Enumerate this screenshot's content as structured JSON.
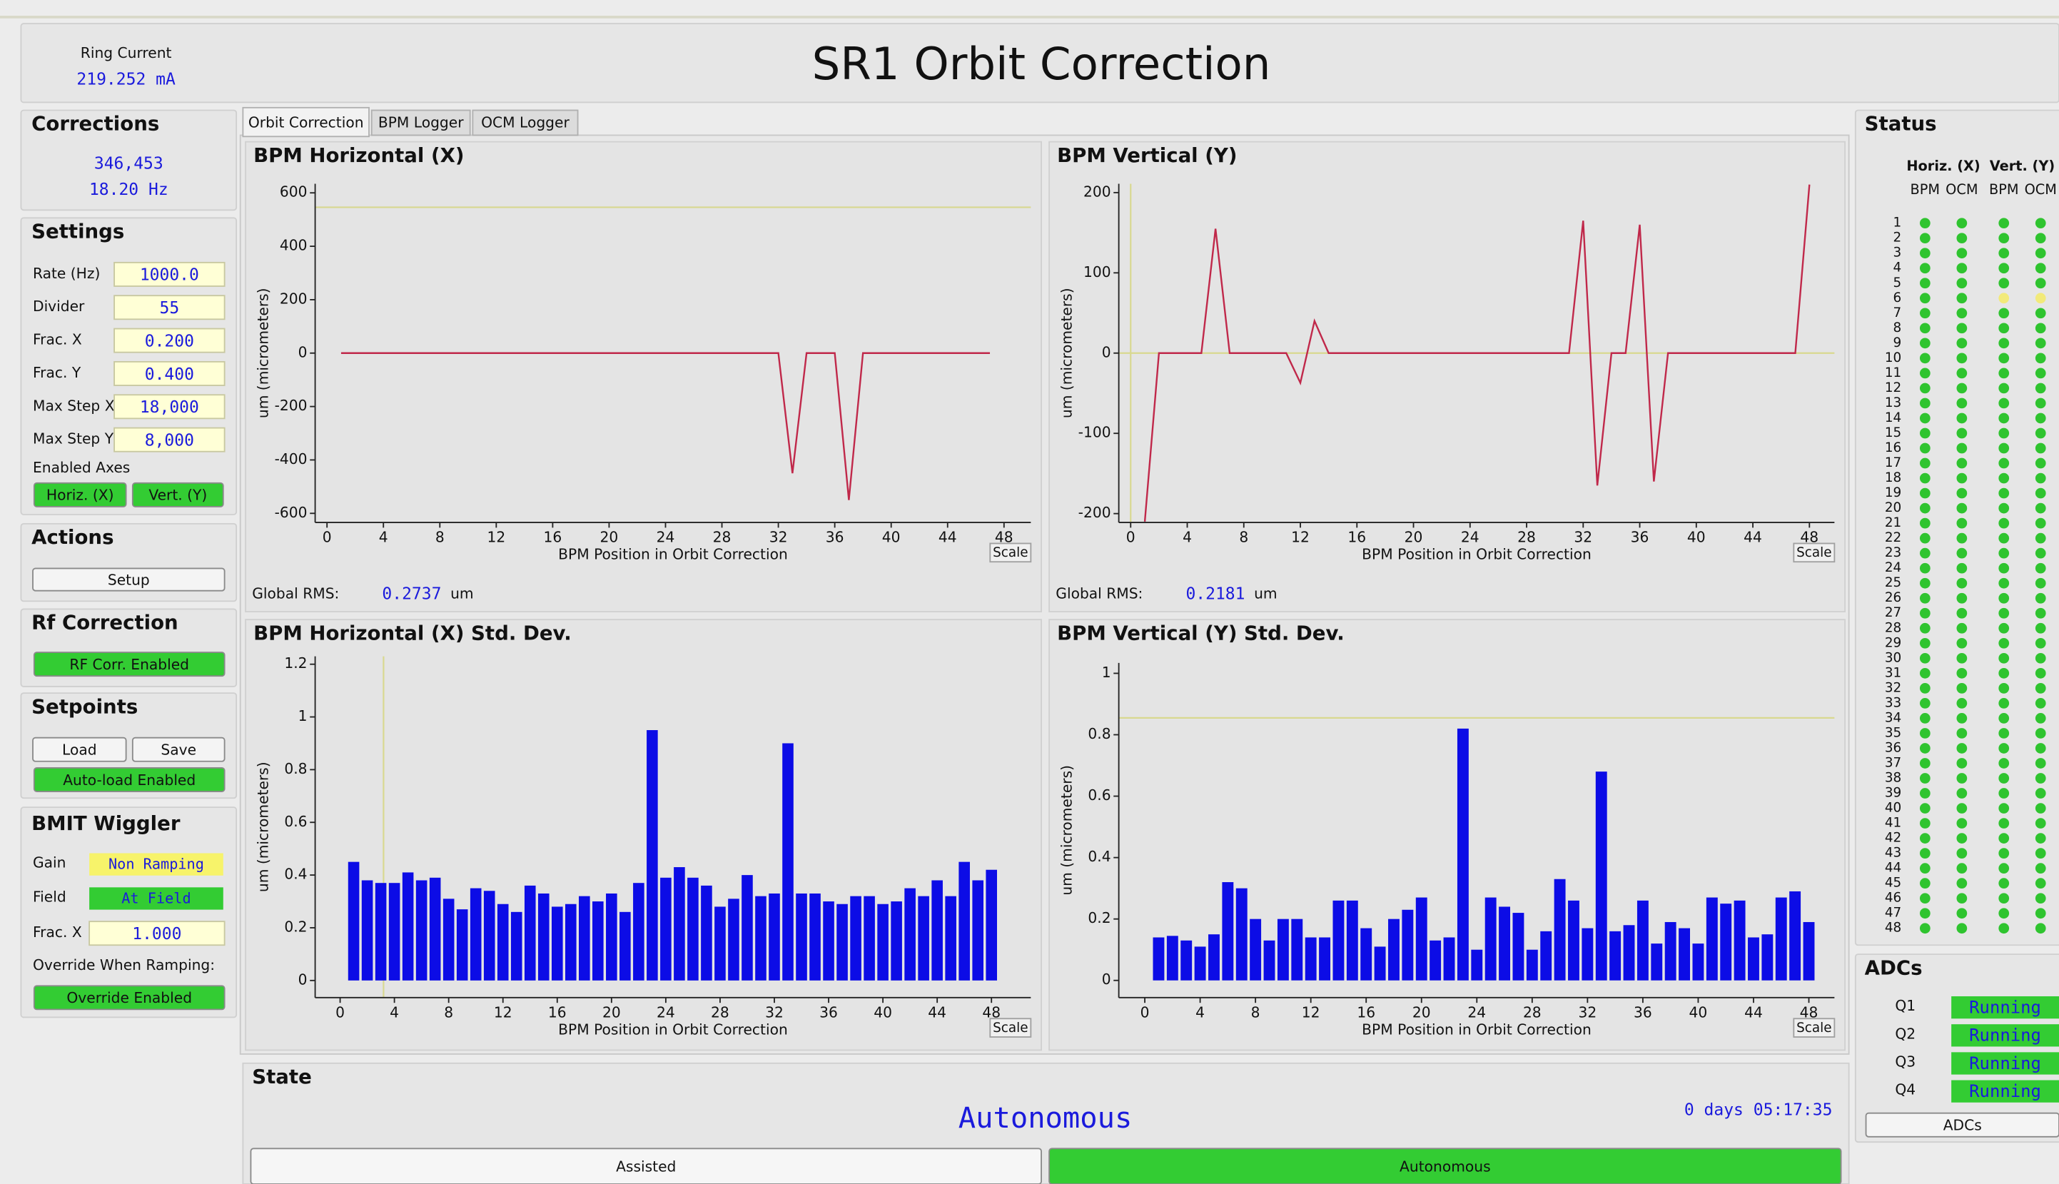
{
  "header": {
    "ring_current_label": "Ring Current",
    "ring_current": "219.252 mA",
    "title": "SR1 Orbit Correction"
  },
  "corrections": {
    "title": "Corrections",
    "count": "346,453",
    "rate": "18.20 Hz"
  },
  "settings": {
    "title": "Settings",
    "fields": [
      {
        "label": "Rate (Hz)",
        "value": "1000.0"
      },
      {
        "label": "Divider",
        "value": "55"
      },
      {
        "label": "Frac. X",
        "value": "0.200"
      },
      {
        "label": "Frac. Y",
        "value": "0.400"
      },
      {
        "label": "Max Step X",
        "value": "18,000"
      },
      {
        "label": "Max Step Y",
        "value": "8,000"
      }
    ],
    "enabled_axes": "Enabled Axes",
    "axes": [
      "Horiz. (X)",
      "Vert. (Y)"
    ]
  },
  "actions": {
    "title": "Actions",
    "setup": "Setup"
  },
  "rf_correction": {
    "title": "Rf Correction",
    "button": "RF Corr. Enabled"
  },
  "setpoints": {
    "title": "Setpoints",
    "load": "Load",
    "save": "Save",
    "autoload": "Auto-load Enabled"
  },
  "wiggler": {
    "title": "BMIT Wiggler",
    "gain_label": "Gain",
    "gain": "Non Ramping",
    "field_label": "Field",
    "field": "At Field",
    "frac_label": "Frac. X",
    "frac": "1.000",
    "override_label": "Override When Ramping:",
    "override": "Override Enabled"
  },
  "tabs": [
    "Orbit Correction",
    "BPM Logger",
    "OCM Logger"
  ],
  "rms": [
    {
      "label": "Global RMS:",
      "value": "0.2737",
      "unit": "um"
    },
    {
      "label": "Global RMS:",
      "value": "0.2181",
      "unit": "um"
    }
  ],
  "scale_button": "Scale",
  "chart_data": [
    {
      "type": "line",
      "title": "BPM Horizontal (X)",
      "x_label": "BPM Position in Orbit Correction",
      "y_label": "um (micrometers)",
      "x": [
        1,
        2,
        3,
        4,
        5,
        6,
        7,
        8,
        9,
        10,
        11,
        12,
        13,
        14,
        15,
        16,
        17,
        18,
        19,
        20,
        21,
        22,
        23,
        24,
        25,
        26,
        27,
        28,
        29,
        30,
        31,
        32,
        33,
        34,
        35,
        36,
        37,
        38,
        39,
        40,
        41,
        42,
        43,
        44,
        45,
        46,
        47
      ],
      "values": [
        0,
        0,
        0,
        0,
        0,
        0,
        0,
        0,
        0,
        0,
        0,
        0,
        0,
        0,
        0,
        0,
        0,
        0,
        0,
        0,
        0,
        0,
        0,
        0,
        0,
        0,
        0,
        0,
        0,
        0,
        0,
        0,
        -450,
        0,
        0,
        0,
        -550,
        0,
        0,
        0,
        0,
        0,
        0,
        0,
        0,
        0,
        0
      ],
      "color": "#c0284a",
      "reference_y": 546,
      "reference_color": "#d8d890",
      "xlim": [
        -0.84,
        49.9
      ],
      "ylim": [
        -634,
        634
      ],
      "xticks": [
        0,
        4,
        8,
        12,
        16,
        20,
        24,
        28,
        32,
        36,
        40,
        44,
        48
      ],
      "yticks": [
        -600,
        -400,
        -200,
        0,
        200,
        400,
        600
      ]
    },
    {
      "type": "line",
      "title": "BPM Vertical (Y)",
      "x_label": "BPM Position in Orbit Correction",
      "y_label": "um (micrometers)",
      "x": [
        1,
        2,
        3,
        4,
        5,
        6,
        7,
        8,
        9,
        10,
        11,
        12,
        13,
        14,
        15,
        16,
        17,
        18,
        19,
        20,
        21,
        22,
        23,
        24,
        25,
        26,
        27,
        28,
        29,
        30,
        31,
        32,
        33,
        34,
        35,
        36,
        37,
        38,
        39,
        40,
        41,
        42,
        43,
        44,
        45,
        46,
        47,
        48
      ],
      "values": [
        -210,
        0,
        0,
        0,
        0,
        155,
        0,
        0,
        0,
        0,
        0,
        -37,
        40,
        0,
        0,
        0,
        0,
        0,
        0,
        0,
        0,
        0,
        0,
        0,
        0,
        0,
        0,
        0,
        0,
        0,
        0,
        165,
        -165,
        0,
        0,
        160,
        -160,
        0,
        0,
        0,
        0,
        0,
        0,
        0,
        0,
        0,
        0,
        210
      ],
      "color": "#c0284a",
      "reference_y": 0,
      "reference_x": 0,
      "reference_color": "#d8d890",
      "xlim": [
        -0.84,
        49.77
      ],
      "ylim": [
        -211,
        211
      ],
      "xticks": [
        0,
        4,
        8,
        12,
        16,
        20,
        24,
        28,
        32,
        36,
        40,
        44,
        48
      ],
      "yticks": [
        -200,
        -100,
        0,
        100,
        200
      ]
    },
    {
      "type": "bar",
      "title": "BPM Horizontal (X) Std. Dev.",
      "x_label": "BPM Position in Orbit Correction",
      "y_label": "um (micrometers)",
      "x": [
        1,
        2,
        3,
        4,
        5,
        6,
        7,
        8,
        9,
        10,
        11,
        12,
        13,
        14,
        15,
        16,
        17,
        18,
        19,
        20,
        21,
        22,
        23,
        24,
        25,
        26,
        27,
        28,
        29,
        30,
        31,
        32,
        33,
        34,
        35,
        36,
        37,
        38,
        39,
        40,
        41,
        42,
        43,
        44,
        45,
        46,
        47,
        48
      ],
      "values": [
        0.45,
        0.38,
        0.37,
        0.37,
        0.41,
        0.38,
        0.39,
        0.31,
        0.27,
        0.35,
        0.34,
        0.29,
        0.26,
        0.36,
        0.33,
        0.28,
        0.29,
        0.32,
        0.3,
        0.33,
        0.26,
        0.37,
        0.95,
        0.39,
        0.43,
        0.39,
        0.36,
        0.28,
        0.31,
        0.4,
        0.32,
        0.33,
        0.9,
        0.33,
        0.33,
        0.3,
        0.29,
        0.32,
        0.32,
        0.29,
        0.3,
        0.35,
        0.32,
        0.38,
        0.32,
        0.45,
        0.38,
        0.42
      ],
      "color": "#0c0ce6",
      "reference_x": 3.2,
      "reference_color": "#d8d890",
      "xlim": [
        -1.84,
        50.9
      ],
      "ylim": [
        -0.065,
        1.23
      ],
      "xticks": [
        0,
        4,
        8,
        12,
        16,
        20,
        24,
        28,
        32,
        36,
        40,
        44,
        48
      ],
      "yticks": [
        0,
        0.2,
        0.4,
        0.6,
        0.8,
        1,
        1.2
      ]
    },
    {
      "type": "bar",
      "title": "BPM Vertical (Y) Std. Dev.",
      "x_label": "BPM Position in Orbit Correction",
      "y_label": "um (micrometers)",
      "x": [
        1,
        2,
        3,
        4,
        5,
        6,
        7,
        8,
        9,
        10,
        11,
        12,
        13,
        14,
        15,
        16,
        17,
        18,
        19,
        20,
        21,
        22,
        23,
        24,
        25,
        26,
        27,
        28,
        29,
        30,
        31,
        32,
        33,
        34,
        35,
        36,
        37,
        38,
        39,
        40,
        41,
        42,
        43,
        44,
        45,
        46,
        47,
        48
      ],
      "values": [
        0.14,
        0.145,
        0.13,
        0.11,
        0.15,
        0.32,
        0.3,
        0.2,
        0.13,
        0.2,
        0.2,
        0.14,
        0.14,
        0.26,
        0.26,
        0.17,
        0.11,
        0.2,
        0.23,
        0.27,
        0.13,
        0.14,
        0.82,
        0.1,
        0.27,
        0.24,
        0.22,
        0.1,
        0.16,
        0.33,
        0.26,
        0.17,
        0.68,
        0.16,
        0.18,
        0.26,
        0.12,
        0.19,
        0.17,
        0.12,
        0.27,
        0.25,
        0.26,
        0.14,
        0.15,
        0.27,
        0.29,
        0.19
      ],
      "color": "#0c0ce6",
      "reference_y": 0.855,
      "reference_color": "#d8d890",
      "xlim": [
        -1.88,
        49.85
      ],
      "ylim": [
        -0.056,
        1.034
      ],
      "xticks": [
        0,
        4,
        8,
        12,
        16,
        20,
        24,
        28,
        32,
        36,
        40,
        44,
        48
      ],
      "yticks": [
        0,
        0.2,
        0.4,
        0.6,
        0.8,
        1
      ]
    }
  ],
  "state": {
    "title": "State",
    "mode": "Autonomous",
    "uptime": "0 days 05:17:35",
    "buttons": [
      "Assisted",
      "Autonomous"
    ]
  },
  "status": {
    "title": "Status",
    "groups": [
      "Horiz. (X)",
      "Vert. (Y)"
    ],
    "columns": [
      "BPM",
      "OCM",
      "BPM",
      "OCM"
    ],
    "row_labels": [
      "1",
      "2",
      "3",
      "4",
      "5",
      "6",
      "7",
      "8",
      "9",
      "10",
      "11",
      "12",
      "13",
      "14",
      "15",
      "16",
      "17",
      "18",
      "19",
      "20",
      "21",
      "22",
      "23",
      "24",
      "25",
      "26",
      "27",
      "28",
      "29",
      "30",
      "31",
      "32",
      "33",
      "34",
      "35",
      "36",
      "37",
      "38",
      "39",
      "40",
      "41",
      "42",
      "43",
      "44",
      "45",
      "46",
      "47",
      "48"
    ],
    "leds": [
      "gggg",
      "gggg",
      "gggg",
      "gggg",
      "gggg",
      "ggyy",
      "gggg",
      "gggg",
      "gggg",
      "gggg",
      "gggg",
      "gggg",
      "gggg",
      "gggg",
      "gggg",
      "gggg",
      "gggg",
      "gggg",
      "gggg",
      "gggg",
      "gggg",
      "gggg",
      "gggg",
      "gggg",
      "gggg",
      "gggg",
      "gggg",
      "gggg",
      "gggg",
      "gggg",
      "gggg",
      "gggg",
      "gggg",
      "gggg",
      "gggg",
      "gggg",
      "gggg",
      "gggg",
      "gggg",
      "gggg",
      "gggg",
      "gggg",
      "gggg",
      "gggg",
      "gggg",
      "gggg",
      "gggg",
      "gggg"
    ],
    "led_colors": {
      "g": "#2fc42f",
      "y": "#f2ea7a"
    }
  },
  "adcs": {
    "title": "ADCs",
    "items": [
      {
        "label": "Q1",
        "state": "Running"
      },
      {
        "label": "Q2",
        "state": "Running"
      },
      {
        "label": "Q3",
        "state": "Running"
      },
      {
        "label": "Q4",
        "state": "Running"
      }
    ],
    "button": "ADCs"
  }
}
